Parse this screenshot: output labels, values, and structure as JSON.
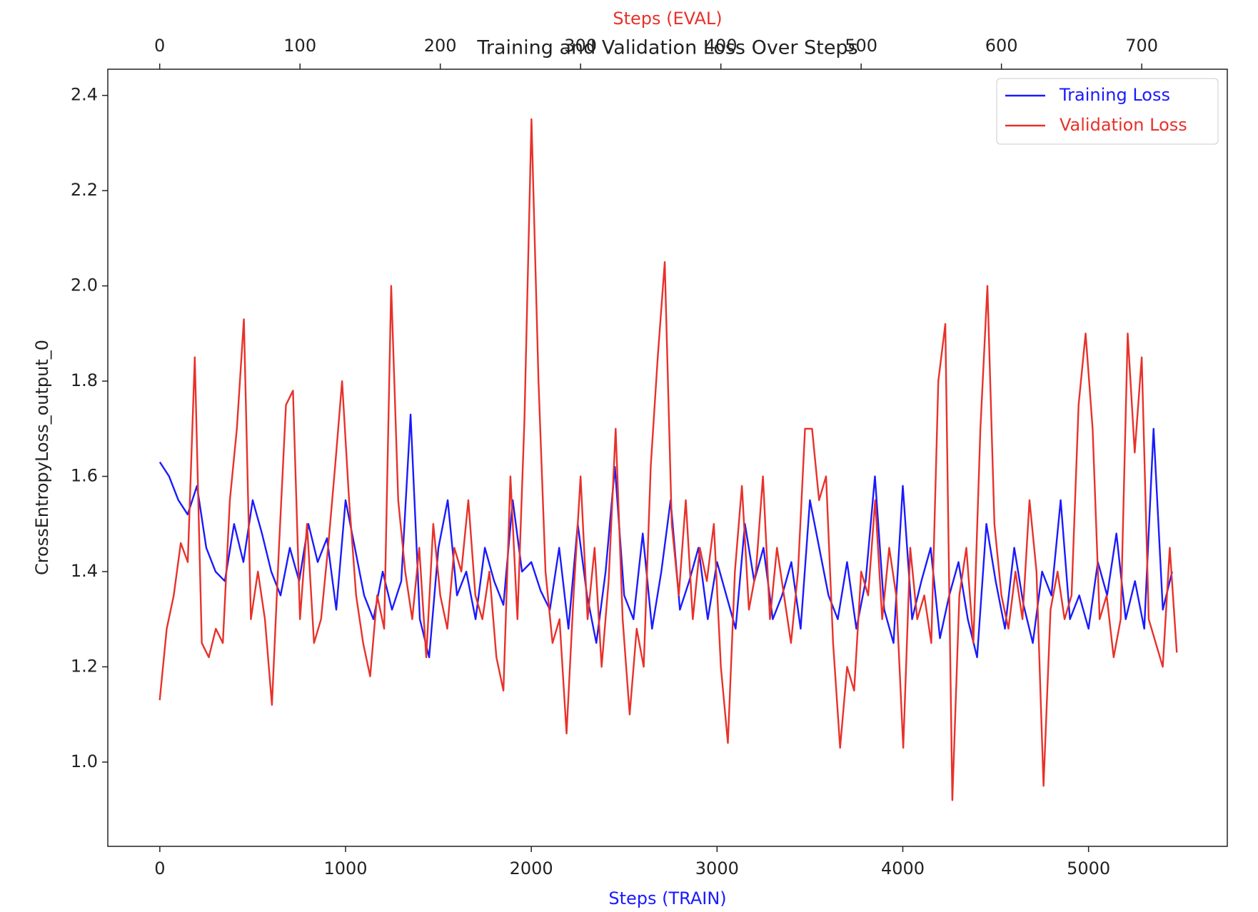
{
  "chart_data": {
    "type": "line",
    "title": "Training and Validation Loss Over Steps",
    "xlabel": "Steps (TRAIN)",
    "x2label": "Steps (EVAL)",
    "ylabel": "CrossEntropyLoss_output_0",
    "xlim": [
      -280,
      5747
    ],
    "xticks": [
      0,
      1000,
      2000,
      3000,
      4000,
      5000
    ],
    "x2lim": [
      -37,
      761
    ],
    "x2ticks": [
      0,
      100,
      200,
      300,
      400,
      500,
      600,
      700
    ],
    "ylim": [
      0.823,
      2.455
    ],
    "yticks": [
      {
        "value": 1.0,
        "label": "1.0"
      },
      1.2,
      1.4,
      1.6,
      1.8,
      {
        "value": 2.0,
        "label": "2.0"
      },
      2.2,
      2.4
    ],
    "legend": "upper right",
    "series": [
      {
        "name": "Training Loss",
        "color": "#1a1aff",
        "x": [
          0,
          50,
          100,
          150,
          200,
          250,
          300,
          350,
          400,
          450,
          500,
          550,
          600,
          650,
          700,
          750,
          800,
          850,
          900,
          950,
          1000,
          1050,
          1100,
          1150,
          1200,
          1250,
          1300,
          1350,
          1400,
          1450,
          1500,
          1550,
          1600,
          1650,
          1700,
          1750,
          1800,
          1850,
          1900,
          1950,
          2000,
          2050,
          2100,
          2150,
          2200,
          2250,
          2300,
          2350,
          2400,
          2450,
          2500,
          2550,
          2600,
          2650,
          2700,
          2750,
          2800,
          2850,
          2900,
          2950,
          3000,
          3050,
          3100,
          3150,
          3200,
          3250,
          3300,
          3350,
          3400,
          3450,
          3500,
          3550,
          3600,
          3650,
          3700,
          3750,
          3800,
          3850,
          3900,
          3950,
          4000,
          4050,
          4100,
          4150,
          4200,
          4250,
          4300,
          4350,
          4400,
          4450,
          4500,
          4550,
          4600,
          4650,
          4700,
          4750,
          4800,
          4850,
          4900,
          4950,
          5000,
          5050,
          5100,
          5150,
          5200,
          5250,
          5300,
          5350,
          5400,
          5450
        ],
        "values": [
          1.63,
          1.6,
          1.55,
          1.52,
          1.58,
          1.45,
          1.4,
          1.38,
          1.5,
          1.42,
          1.55,
          1.48,
          1.4,
          1.35,
          1.45,
          1.38,
          1.5,
          1.42,
          1.47,
          1.32,
          1.55,
          1.45,
          1.35,
          1.3,
          1.4,
          1.32,
          1.38,
          1.73,
          1.3,
          1.22,
          1.45,
          1.55,
          1.35,
          1.4,
          1.3,
          1.45,
          1.38,
          1.33,
          1.55,
          1.4,
          1.42,
          1.36,
          1.32,
          1.45,
          1.28,
          1.5,
          1.35,
          1.25,
          1.4,
          1.62,
          1.35,
          1.3,
          1.48,
          1.28,
          1.4,
          1.55,
          1.32,
          1.38,
          1.45,
          1.3,
          1.42,
          1.35,
          1.28,
          1.5,
          1.38,
          1.45,
          1.3,
          1.35,
          1.42,
          1.28,
          1.55,
          1.45,
          1.35,
          1.3,
          1.42,
          1.28,
          1.38,
          1.6,
          1.32,
          1.25,
          1.58,
          1.3,
          1.38,
          1.45,
          1.26,
          1.35,
          1.42,
          1.3,
          1.22,
          1.5,
          1.38,
          1.28,
          1.45,
          1.33,
          1.25,
          1.4,
          1.35,
          1.55,
          1.3,
          1.35,
          1.28,
          1.42,
          1.35,
          1.48,
          1.3,
          1.38,
          1.28,
          1.7,
          1.32,
          1.4
        ]
      },
      {
        "name": "Validation Loss",
        "color": "#e8312a",
        "axis": "x2",
        "x": [
          0,
          5,
          10,
          15,
          20,
          25,
          30,
          35,
          40,
          45,
          50,
          55,
          60,
          65,
          70,
          75,
          80,
          85,
          90,
          95,
          100,
          105,
          110,
          115,
          120,
          125,
          130,
          135,
          140,
          145,
          150,
          155,
          160,
          165,
          170,
          175,
          180,
          185,
          190,
          195,
          200,
          205,
          210,
          215,
          220,
          225,
          230,
          235,
          240,
          245,
          250,
          255,
          260,
          265,
          270,
          275,
          280,
          285,
          290,
          295,
          300,
          305,
          310,
          315,
          320,
          325,
          330,
          335,
          340,
          345,
          350,
          355,
          360,
          365,
          370,
          375,
          380,
          385,
          390,
          395,
          400,
          405,
          410,
          415,
          420,
          425,
          430,
          435,
          440,
          445,
          450,
          455,
          460,
          465,
          470,
          475,
          480,
          485,
          490,
          495,
          500,
          505,
          510,
          515,
          520,
          525,
          530,
          535,
          540,
          545,
          550,
          555,
          560,
          565,
          570,
          575,
          580,
          585,
          590,
          595,
          600,
          605,
          610,
          615,
          620,
          625,
          630,
          635,
          640,
          645,
          650,
          655,
          660,
          665,
          670,
          675,
          680,
          685,
          690,
          695,
          700,
          705,
          710,
          715,
          720,
          725
        ],
        "values": [
          1.13,
          1.28,
          1.35,
          1.46,
          1.42,
          1.85,
          1.25,
          1.22,
          1.28,
          1.25,
          1.55,
          1.7,
          1.93,
          1.3,
          1.4,
          1.3,
          1.12,
          1.45,
          1.75,
          1.78,
          1.3,
          1.5,
          1.25,
          1.3,
          1.45,
          1.62,
          1.8,
          1.55,
          1.35,
          1.25,
          1.18,
          1.35,
          1.28,
          2.0,
          1.55,
          1.4,
          1.3,
          1.45,
          1.22,
          1.5,
          1.35,
          1.28,
          1.45,
          1.4,
          1.55,
          1.35,
          1.3,
          1.4,
          1.22,
          1.15,
          1.6,
          1.3,
          1.72,
          2.35,
          1.8,
          1.4,
          1.25,
          1.3,
          1.06,
          1.35,
          1.6,
          1.3,
          1.45,
          1.2,
          1.38,
          1.7,
          1.3,
          1.1,
          1.28,
          1.2,
          1.62,
          1.85,
          2.05,
          1.5,
          1.35,
          1.55,
          1.3,
          1.45,
          1.38,
          1.5,
          1.2,
          1.04,
          1.4,
          1.58,
          1.32,
          1.4,
          1.6,
          1.3,
          1.45,
          1.35,
          1.25,
          1.4,
          1.7,
          1.7,
          1.55,
          1.6,
          1.25,
          1.03,
          1.2,
          1.15,
          1.4,
          1.35,
          1.55,
          1.3,
          1.45,
          1.35,
          1.03,
          1.45,
          1.3,
          1.35,
          1.25,
          1.8,
          1.92,
          0.92,
          1.35,
          1.45,
          1.25,
          1.7,
          2.0,
          1.5,
          1.35,
          1.28,
          1.4,
          1.3,
          1.55,
          1.4,
          0.95,
          1.32,
          1.4,
          1.3,
          1.35,
          1.75,
          1.9,
          1.7,
          1.3,
          1.35,
          1.22,
          1.3,
          1.9,
          1.65,
          1.85,
          1.3,
          1.25,
          1.2,
          1.45,
          1.23
        ]
      }
    ]
  }
}
